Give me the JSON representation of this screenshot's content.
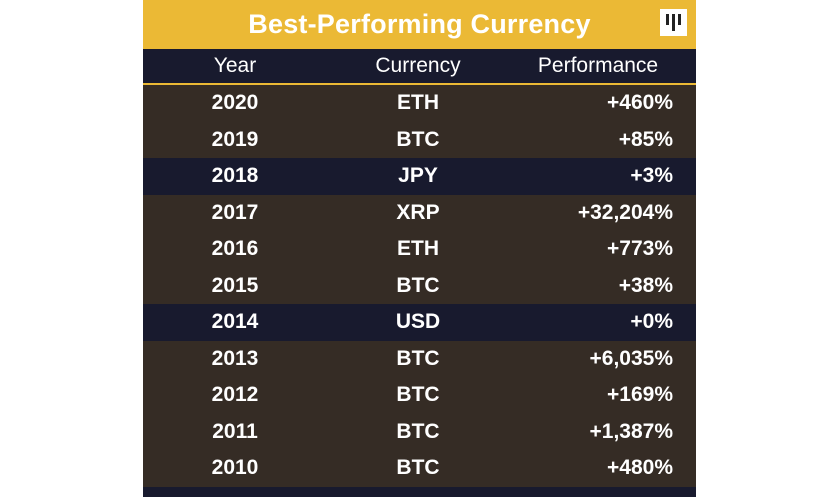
{
  "chart_data": {
    "type": "table",
    "title": "Best-Performing Currency",
    "columns": [
      "Year",
      "Currency",
      "Performance"
    ],
    "rows": [
      {
        "year": "2020",
        "currency": "ETH",
        "performance": "+460%",
        "highlight": false
      },
      {
        "year": "2019",
        "currency": "BTC",
        "performance": "+85%",
        "highlight": false
      },
      {
        "year": "2018",
        "currency": "JPY",
        "performance": "+3%",
        "highlight": true
      },
      {
        "year": "2017",
        "currency": "XRP",
        "performance": "+32,204%",
        "highlight": false
      },
      {
        "year": "2016",
        "currency": "ETH",
        "performance": "+773%",
        "highlight": false
      },
      {
        "year": "2015",
        "currency": "BTC",
        "performance": "+38%",
        "highlight": false
      },
      {
        "year": "2014",
        "currency": "USD",
        "performance": "+0%",
        "highlight": true
      },
      {
        "year": "2013",
        "currency": "BTC",
        "performance": "+6,035%",
        "highlight": false
      },
      {
        "year": "2012",
        "currency": "BTC",
        "performance": "+169%",
        "highlight": false
      },
      {
        "year": "2011",
        "currency": "BTC",
        "performance": "+1,387%",
        "highlight": false
      },
      {
        "year": "2010",
        "currency": "BTC",
        "performance": "+480%",
        "highlight": false
      }
    ]
  },
  "colors": {
    "accent": "#ebb935",
    "row_bg": "#352c25",
    "highlight_bg": "#181a2e",
    "text": "#ffffff"
  },
  "logo": {
    "icon": "pitchbook-logo-icon"
  }
}
